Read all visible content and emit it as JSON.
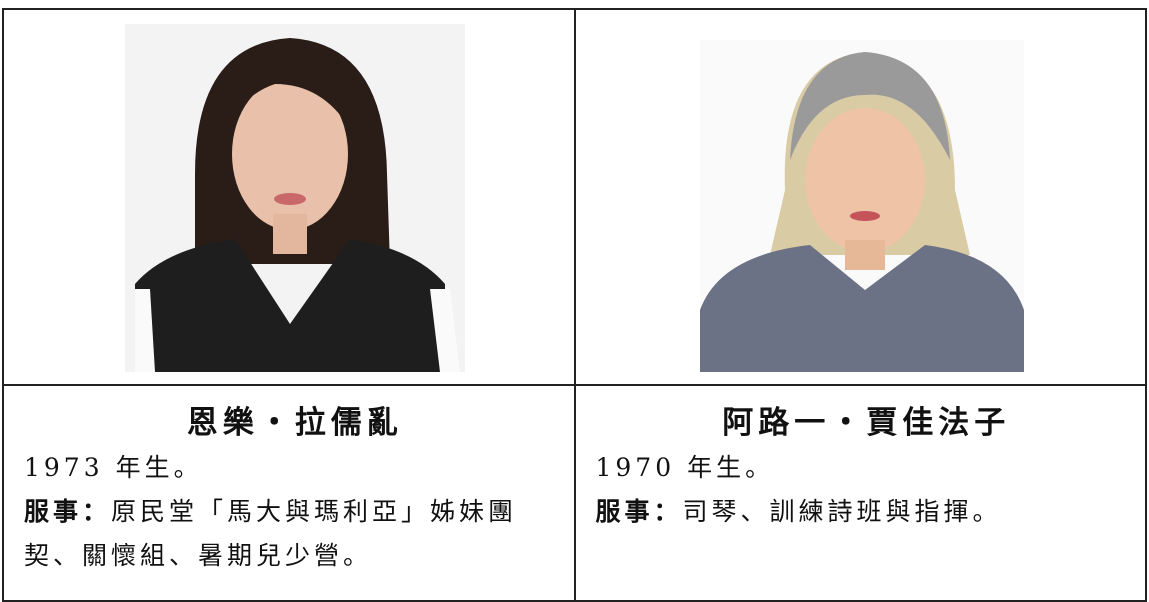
{
  "table": {
    "rows": [
      [
        {
          "name": "恩樂・拉儒亂",
          "born": "1973 年生。",
          "service_label": "服事：",
          "service": "原民堂「馬大與瑪利亞」姊妹團契、關懷組、暑期兒少營。"
        },
        {
          "name": "阿路一・賈佳法子",
          "born": "1970 年生。",
          "service_label": "服事：",
          "service": "司琴、訓練詩班與指揮。"
        }
      ]
    ]
  }
}
